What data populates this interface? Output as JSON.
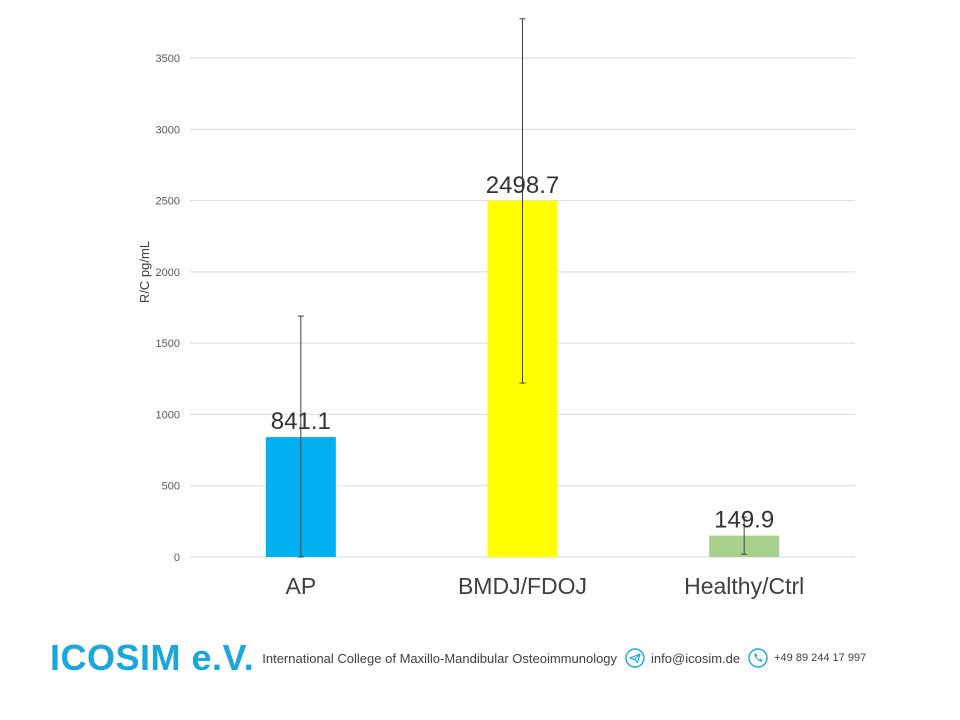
{
  "chart_data": {
    "type": "bar",
    "categories": [
      "AP",
      "BMDJ/FDOJ",
      "Healthy/Ctrl"
    ],
    "values": [
      841.1,
      2498.7,
      149.9
    ],
    "data_labels": [
      "841.1",
      "2498.7",
      "149.9"
    ],
    "error_bars": [
      {
        "low": 0,
        "high": 1690
      },
      {
        "low": 1220,
        "high": 3775
      },
      {
        "low": 20,
        "high": 280
      }
    ],
    "bar_colors": [
      "#00b0f0",
      "#ffff00",
      "#a9d18e"
    ],
    "ylabel": "R/C pg/mL",
    "xlabel": "",
    "ylim": [
      0,
      3500
    ],
    "yticks": [
      0,
      500,
      1000,
      1500,
      2000,
      2500,
      3000,
      3500
    ],
    "grid": true,
    "legend": "none"
  },
  "footer": {
    "brand": "ICOSIM e.V.",
    "tagline": "International College of Maxillo-Mandibular Osteoimmunology",
    "email": "info@icosim.de",
    "phone": "+49 89 244 17 997",
    "brand_color": "#1aa7dc"
  }
}
